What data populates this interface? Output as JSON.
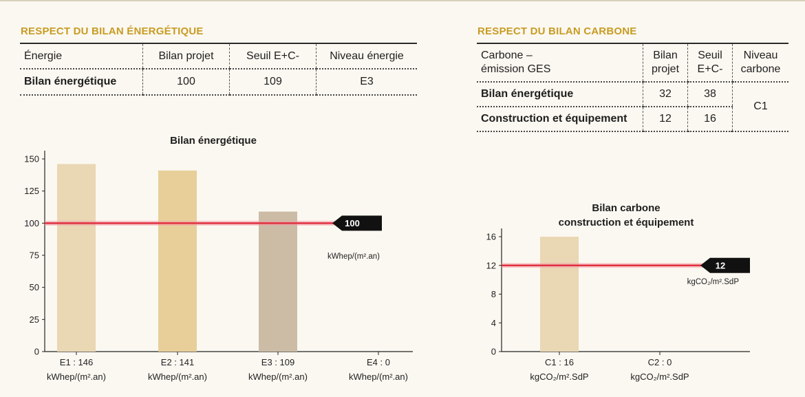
{
  "energy": {
    "section_title": "RESPECT DU BILAN ÉNERGÉTIQUE",
    "table": {
      "headers": [
        "Énergie",
        "Bilan projet",
        "Seuil E+C-",
        "Niveau énergie"
      ],
      "row": {
        "label": "Bilan énergétique",
        "values": [
          "100",
          "109",
          "E3"
        ]
      }
    }
  },
  "carbon": {
    "section_title": "RESPECT DU BILAN CARBONE",
    "table": {
      "headers": [
        "Carbone –\némission GES",
        "Bilan\nprojet",
        "Seuil\nE+C-",
        "Niveau\ncarbone"
      ],
      "rows": [
        {
          "label": "Bilan énergétique",
          "projet": "32",
          "seuil": "38"
        },
        {
          "label": "Construction et équipement",
          "projet": "12",
          "seuil": "16"
        }
      ],
      "niveau": "C1"
    }
  },
  "chart_data": [
    {
      "type": "bar",
      "title": "Bilan énergétique",
      "categories": [
        "E1 : 146",
        "E2 : 141",
        "E3 : 109",
        "E4 : 0"
      ],
      "category_units": "kWhep/(m².an)",
      "values": [
        146,
        141,
        109,
        0
      ],
      "bar_colors": [
        "#ead7b4",
        "#e8cf9a",
        "#ccbca6",
        "#ead7b4"
      ],
      "yticks": [
        0,
        25,
        50,
        75,
        100,
        125,
        150
      ],
      "ylim": [
        0,
        150
      ],
      "reference": {
        "value": 100,
        "label": "100",
        "unit": "kWhep/(m².an)",
        "color": "#e03040"
      },
      "grid": false
    },
    {
      "type": "bar",
      "title": "Bilan carbone\nconstruction et équipement",
      "categories": [
        "C1 : 16",
        "C2 : 0"
      ],
      "category_units": "kgCO₂/m².SdP",
      "values": [
        16,
        0
      ],
      "bar_colors": [
        "#ead7b4",
        "#ead7b4"
      ],
      "yticks": [
        0,
        4,
        8,
        12,
        16
      ],
      "ylim": [
        0,
        16
      ],
      "reference": {
        "value": 12,
        "label": "12",
        "unit": "kgCO₂/m².SdP",
        "color": "#e03040"
      },
      "grid": false
    }
  ],
  "colors": {
    "accent": "#c89b22",
    "reference_line": "#e03040",
    "badge": "#111111",
    "bar_fill": "#ead7b4"
  }
}
